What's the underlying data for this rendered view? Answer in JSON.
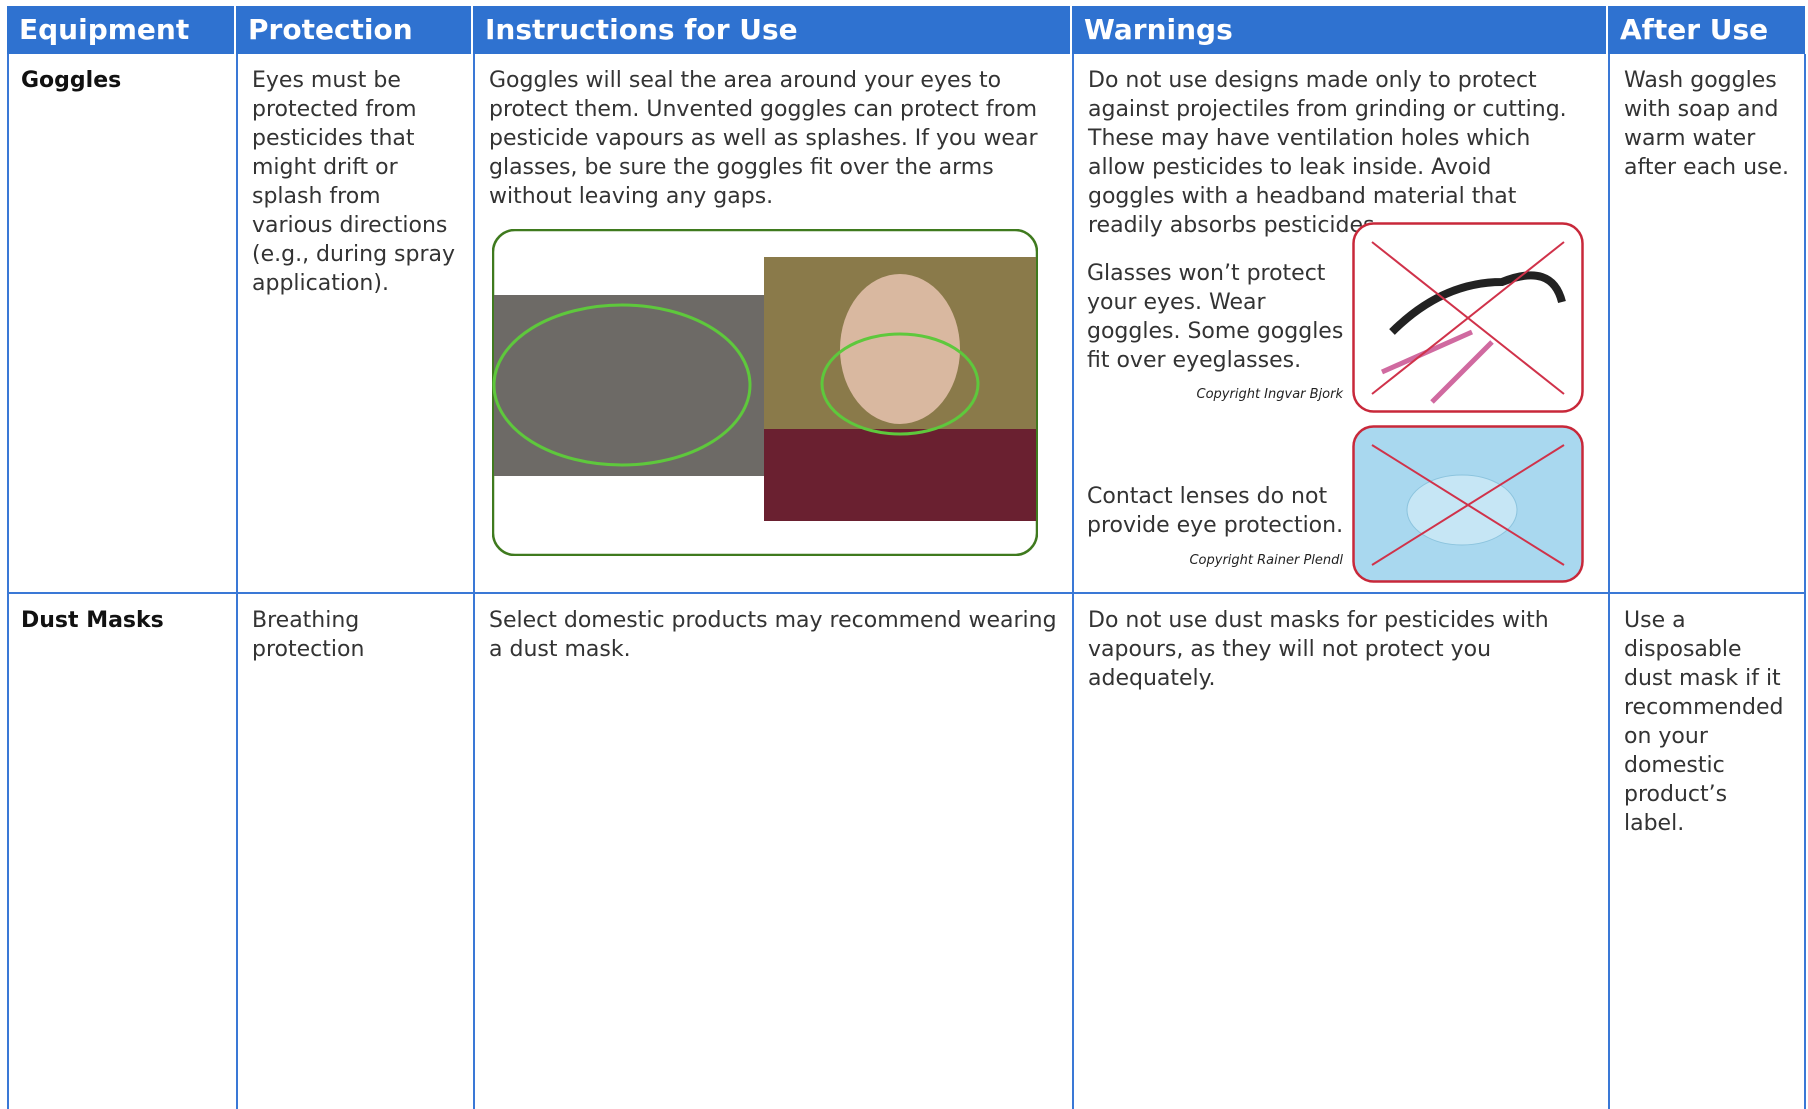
{
  "table": {
    "headers": [
      "Equipment",
      "Protection",
      "Instructions for Use",
      "Warnings",
      "After Use"
    ],
    "rows": [
      {
        "equipment": "Goggles",
        "protection": "Eyes must be protected from pesticides that might drift or splash from various directions (e.g., during spray application).",
        "instructions": "Goggles will seal the area around your eyes to protect them. Unvented goggles can protect from pesticide vapours as well as splashes. If you wear glasses, be sure the goggles fit over the arms without leaving any gaps.",
        "warnings": {
          "text": "Do not use designs made only to protect against projectiles from grinding or cutting. These may have ventilation holes which allow pesticides to leak inside. Avoid goggles with a headband material that readily absorbs pesticides.",
          "notes": [
            {
              "text": "Glasses won’t protect your eyes. Wear goggles. Some goggles fit over eyeglasses.",
              "credit": "Copyright Ingvar Bjork"
            },
            {
              "text": "Contact lenses do not provide eye protection.",
              "credit": "Copyright Rainer Plendl"
            }
          ]
        },
        "after_use": "Wash goggles with soap and warm water after each use."
      },
      {
        "equipment": "Dust Masks",
        "protection": "Breathing protection",
        "instructions": "Select domestic products may recommend wearing a dust mask.",
        "warnings": {
          "text": "Do not use dust masks for pesticides with vapours, as they will not protect you adequately."
        },
        "after_use": "Use a disposable dust mask if it recommended on your domestic product’s label."
      }
    ]
  }
}
